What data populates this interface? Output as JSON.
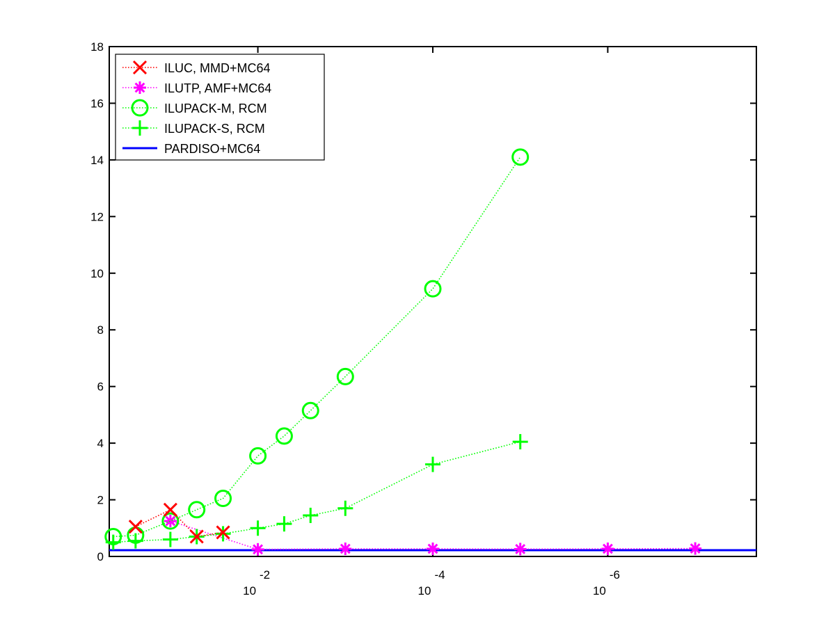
{
  "chart_data": {
    "type": "line",
    "x_scale": "log10",
    "x_reversed": true,
    "xlim": [
      0.5,
      2e-08
    ],
    "ylim": [
      0,
      18
    ],
    "x_ticks": [
      {
        "base": "10",
        "exp": "-2",
        "value": 0.01
      },
      {
        "base": "10",
        "exp": "-4",
        "value": 0.0001
      },
      {
        "base": "10",
        "exp": "-6",
        "value": 1e-06
      }
    ],
    "y_ticks": [
      "0",
      "2",
      "4",
      "6",
      "8",
      "10",
      "12",
      "14",
      "16",
      "18"
    ],
    "legend_position": "top-left",
    "series": [
      {
        "name": "ILUC, MMD+MC64",
        "color": "#ff0000",
        "marker": "x",
        "line_style": "dotted",
        "points": [
          [
            0.25,
            1.05
          ],
          [
            0.1,
            1.65
          ],
          [
            0.05,
            0.7
          ],
          [
            0.025,
            0.85
          ]
        ]
      },
      {
        "name": "ILUTP, AMF+MC64",
        "color": "#ff00ff",
        "marker": "asterisk",
        "line_style": "dotted",
        "points": [
          [
            0.1,
            1.25
          ],
          [
            0.01,
            0.25
          ],
          [
            0.001,
            0.27
          ],
          [
            0.0001,
            0.27
          ],
          [
            1e-05,
            0.26
          ],
          [
            1e-06,
            0.27
          ],
          [
            1e-07,
            0.28
          ]
        ]
      },
      {
        "name": "ILUPACK-M, RCM",
        "color": "#00ff00",
        "marker": "circle",
        "line_style": "dotted",
        "points": [
          [
            0.45,
            0.7
          ],
          [
            0.25,
            0.75
          ],
          [
            0.1,
            1.25
          ],
          [
            0.05,
            1.65
          ],
          [
            0.025,
            2.05
          ],
          [
            0.01,
            3.55
          ],
          [
            0.005,
            4.25
          ],
          [
            0.0025,
            5.15
          ],
          [
            0.001,
            6.35
          ],
          [
            0.0001,
            9.45
          ],
          [
            1e-05,
            14.1
          ]
        ]
      },
      {
        "name": "ILUPACK-S, RCM",
        "color": "#00ff00",
        "marker": "plus",
        "line_style": "dotted",
        "points": [
          [
            0.45,
            0.5
          ],
          [
            0.25,
            0.55
          ],
          [
            0.1,
            0.6
          ],
          [
            0.05,
            0.7
          ],
          [
            0.025,
            0.8
          ],
          [
            0.01,
            1.0
          ],
          [
            0.005,
            1.15
          ],
          [
            0.0025,
            1.45
          ],
          [
            0.001,
            1.7
          ],
          [
            0.0001,
            3.25
          ],
          [
            1e-05,
            4.05
          ]
        ]
      },
      {
        "name": "PARDISO+MC64",
        "color": "#0000ff",
        "marker": "none",
        "line_style": "solid",
        "points": [
          [
            0.5,
            0.22
          ],
          [
            2e-08,
            0.22
          ]
        ]
      }
    ]
  }
}
